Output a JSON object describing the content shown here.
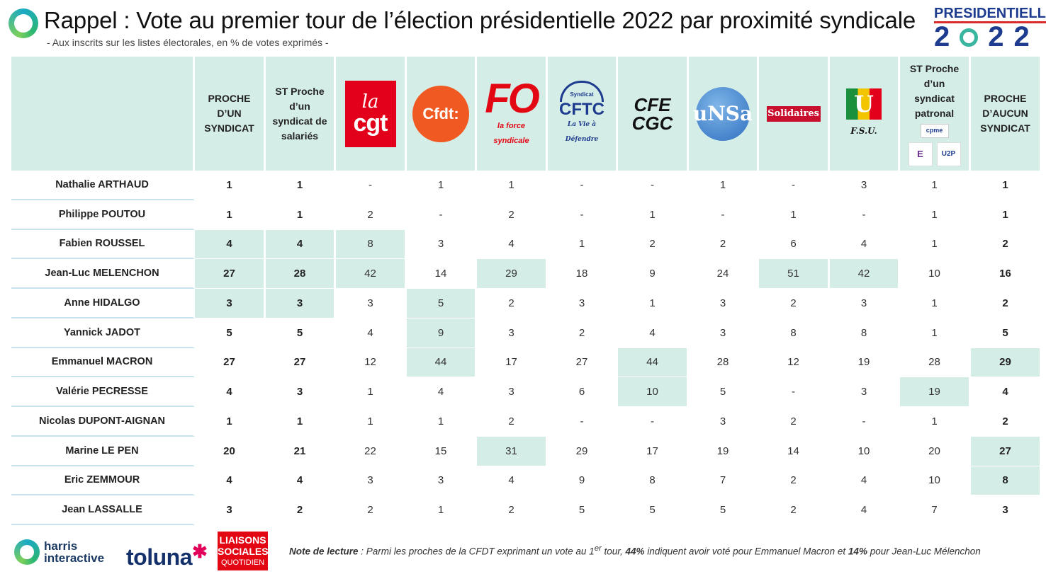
{
  "header": {
    "title": "Rappel : Vote au premier tour de l’élection présidentielle 2022 par proximité syndicale",
    "subtitle": "- Aux inscrits sur les listes électorales, en % de votes exprimés -",
    "brand_top": "PRESIDENTIELLE",
    "brand_year_a": "2",
    "brand_year_b": "22"
  },
  "columns": [
    {
      "key": "proche",
      "label": "PROCHE D’UN SYNDICAT",
      "type": "text",
      "bold": true
    },
    {
      "key": "st_sal",
      "label": "ST Proche d’un syndicat de salariés",
      "type": "text",
      "bold": true
    },
    {
      "key": "cgt",
      "label": "cgt",
      "type": "logo",
      "logo_text": "la cgt",
      "icon": "cgt-logo"
    },
    {
      "key": "cfdt",
      "label": "Cfdt:",
      "type": "logo",
      "logo_text": "Cfdt:",
      "icon": "cfdt-logo"
    },
    {
      "key": "fo",
      "label": "FO",
      "type": "logo",
      "logo_text": "FO",
      "logo_sub": "la force syndicale",
      "icon": "fo-logo"
    },
    {
      "key": "cftc",
      "label": "CFTC",
      "type": "logo",
      "logo_text": "CFTC",
      "logo_top": "Syndicat",
      "logo_sub": "La Vie à Défendre",
      "icon": "cftc-logo"
    },
    {
      "key": "cfecgc",
      "label": "CFE CGC",
      "type": "logo",
      "logo_text": "CFE CGC",
      "icon": "cfe-cgc-logo"
    },
    {
      "key": "unsa",
      "label": "UNSA",
      "type": "logo",
      "logo_text": "uNSa",
      "icon": "unsa-logo"
    },
    {
      "key": "solidaires",
      "label": "Solidaires",
      "type": "logo",
      "logo_text": "Solidaires",
      "icon": "solidaires-logo"
    },
    {
      "key": "fsu",
      "label": "F.S.U.",
      "type": "logo",
      "logo_text": "U",
      "logo_sub": "F.S.U.",
      "icon": "fsu-logo"
    },
    {
      "key": "st_pat",
      "label": "ST Proche d’un syndicat patronal",
      "type": "text_logos",
      "bold": true,
      "logos": [
        "cpme",
        "E",
        "U2P"
      ]
    },
    {
      "key": "aucun",
      "label": "PROCHE D’AUCUN SYNDICAT",
      "type": "text",
      "bold": true
    }
  ],
  "chart_data": {
    "type": "table",
    "title": "Rappel : Vote au premier tour de l’élection présidentielle 2022 par proximité syndicale",
    "columns": [
      "PROCHE D’UN SYNDICAT",
      "ST Proche d’un syndicat de salariés",
      "CGT",
      "CFDT",
      "FO",
      "CFTC",
      "CFE-CGC",
      "UNSA",
      "Solidaires",
      "FSU",
      "ST Proche d’un syndicat patronal",
      "PROCHE D’AUCUN SYNDICAT"
    ],
    "rows": [
      {
        "name": "Nathalie ARTHAUD",
        "values": [
          "1",
          "1",
          "-",
          "1",
          "1",
          "-",
          "-",
          "1",
          "-",
          "3",
          "1",
          "1"
        ],
        "highlight": []
      },
      {
        "name": "Philippe POUTOU",
        "values": [
          "1",
          "1",
          "2",
          "-",
          "2",
          "-",
          "1",
          "-",
          "1",
          "-",
          "1",
          "1"
        ],
        "highlight": []
      },
      {
        "name": "Fabien ROUSSEL",
        "values": [
          "4",
          "4",
          "8",
          "3",
          "4",
          "1",
          "2",
          "2",
          "6",
          "4",
          "1",
          "2"
        ],
        "highlight": [
          0,
          1,
          2
        ]
      },
      {
        "name": "Jean-Luc MELENCHON",
        "values": [
          "27",
          "28",
          "42",
          "14",
          "29",
          "18",
          "9",
          "24",
          "51",
          "42",
          "10",
          "16"
        ],
        "highlight": [
          0,
          1,
          2,
          4,
          8,
          9
        ]
      },
      {
        "name": "Anne HIDALGO",
        "values": [
          "3",
          "3",
          "3",
          "5",
          "2",
          "3",
          "1",
          "3",
          "2",
          "3",
          "1",
          "2"
        ],
        "highlight": [
          0,
          1,
          3
        ]
      },
      {
        "name": "Yannick JADOT",
        "values": [
          "5",
          "5",
          "4",
          "9",
          "3",
          "2",
          "4",
          "3",
          "8",
          "8",
          "1",
          "5"
        ],
        "highlight": [
          3
        ]
      },
      {
        "name": "Emmanuel MACRON",
        "values": [
          "27",
          "27",
          "12",
          "44",
          "17",
          "27",
          "44",
          "28",
          "12",
          "19",
          "28",
          "29"
        ],
        "highlight": [
          3,
          6,
          11
        ]
      },
      {
        "name": "Valérie PECRESSE",
        "values": [
          "4",
          "3",
          "1",
          "4",
          "3",
          "6",
          "10",
          "5",
          "-",
          "3",
          "19",
          "4"
        ],
        "highlight": [
          6,
          10
        ]
      },
      {
        "name": "Nicolas DUPONT-AIGNAN",
        "values": [
          "1",
          "1",
          "1",
          "1",
          "2",
          "-",
          "-",
          "3",
          "2",
          "-",
          "1",
          "2"
        ],
        "highlight": []
      },
      {
        "name": "Marine LE PEN",
        "values": [
          "20",
          "21",
          "22",
          "15",
          "31",
          "29",
          "17",
          "19",
          "14",
          "10",
          "20",
          "27"
        ],
        "highlight": [
          4,
          11
        ]
      },
      {
        "name": "Eric ZEMMOUR",
        "values": [
          "4",
          "4",
          "3",
          "3",
          "4",
          "9",
          "8",
          "7",
          "2",
          "4",
          "10",
          "8"
        ],
        "highlight": [
          11
        ]
      },
      {
        "name": "Jean LASSALLE",
        "values": [
          "3",
          "2",
          "2",
          "1",
          "2",
          "5",
          "5",
          "5",
          "2",
          "4",
          "7",
          "3"
        ],
        "highlight": []
      }
    ],
    "bold_columns": [
      0,
      1,
      11
    ],
    "highlight_color": "#d5ede7"
  },
  "footer": {
    "harris_line1": "harris",
    "harris_line2": "interactive",
    "toluna": "toluna",
    "liaisons_line1": "LIAISONS",
    "liaisons_line2": "SOCIALES",
    "liaisons_line3": "QUOTIDIEN",
    "note_label": "Note de lecture",
    "note_a": " : Parmi les proches de la CFDT exprimant un vote au 1",
    "note_sup": "er",
    "note_b": " tour, ",
    "note_pct1": "44%",
    "note_c": " indiquent avoir voté pour Emmanuel Macron et ",
    "note_pct2": "14%",
    "note_d": " pour Jean-Luc Mélenchon"
  },
  "colors": {
    "accent_table": "#d5ede7",
    "row_divider": "#c6e3ee",
    "brand_blue": "#1d3b8f"
  }
}
